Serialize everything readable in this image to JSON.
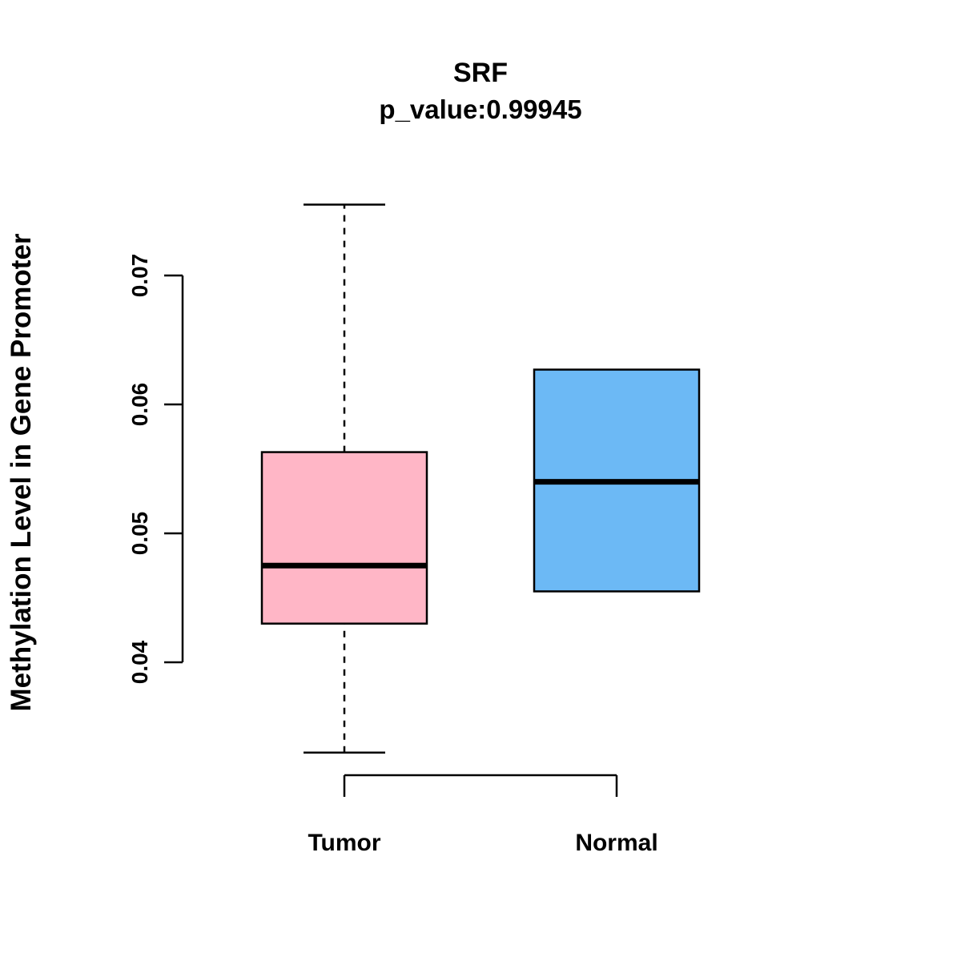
{
  "chart_data": {
    "type": "boxplot",
    "title": "SRF",
    "subtitle": "p_value:0.99945",
    "ylabel": "Methylation Level in Gene Promoter",
    "xlabel": "",
    "yticks": [
      0.04,
      0.05,
      0.06,
      0.07
    ],
    "ylim": [
      0.033,
      0.0755
    ],
    "categories": [
      "Tumor",
      "Normal"
    ],
    "grid": false,
    "legend": "none",
    "boxes": [
      {
        "category": "Tumor",
        "color": "#ffb6c6",
        "border_color": "#000000",
        "whisker_low": 0.033,
        "q1": 0.043,
        "median": 0.0475,
        "q3": 0.0563,
        "whisker_high": 0.0755
      },
      {
        "category": "Normal",
        "color": "#6cb9f5",
        "border_color": "#000000",
        "whisker_low": 0.0455,
        "q1": 0.0455,
        "median": 0.054,
        "q3": 0.0627,
        "whisker_high": 0.0627
      }
    ]
  }
}
